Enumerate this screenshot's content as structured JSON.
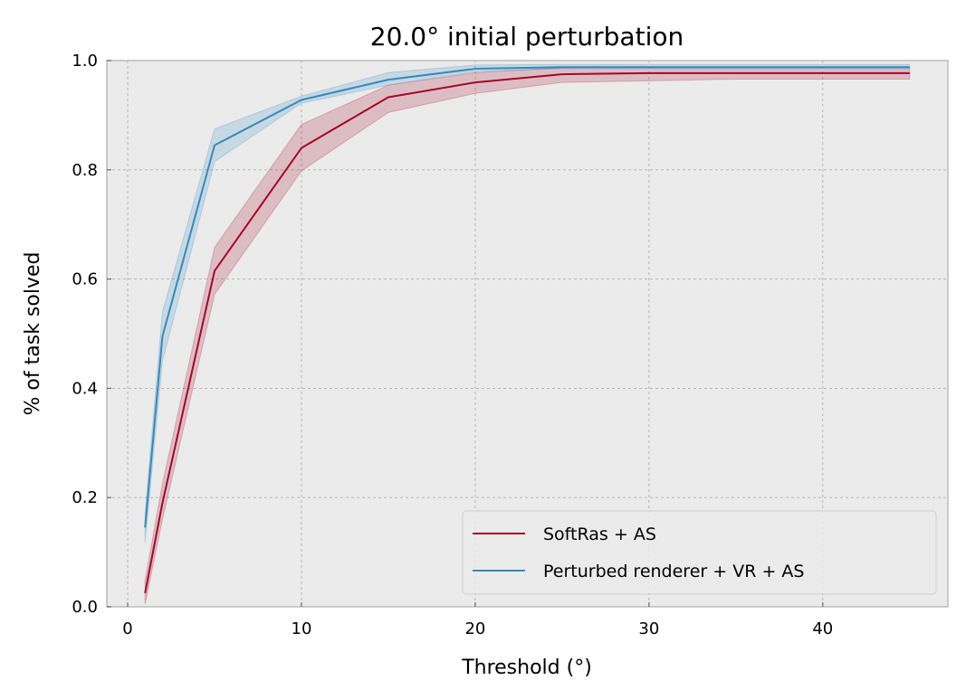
{
  "chart_data": {
    "type": "line",
    "title": "20.0° initial perturbation",
    "xlabel": "Threshold (°)",
    "ylabel": "% of task solved",
    "xlim": [
      -1.2,
      47.2
    ],
    "ylim": [
      0.0,
      1.0
    ],
    "xticks": [
      0,
      10,
      20,
      30,
      40
    ],
    "yticks": [
      0.0,
      0.2,
      0.4,
      0.6,
      0.8,
      1.0
    ],
    "xtick_labels": [
      "0",
      "10",
      "20",
      "30",
      "40"
    ],
    "ytick_labels": [
      "0.0",
      "0.2",
      "0.4",
      "0.6",
      "0.8",
      "1.0"
    ],
    "grid": true,
    "legend_position": "lower-right",
    "x": [
      1,
      2,
      5,
      10,
      15,
      20,
      25,
      30,
      35,
      40,
      45
    ],
    "series": [
      {
        "name": "SoftRas + AS",
        "color": "#a60628",
        "values": [
          0.025,
          0.19,
          0.615,
          0.84,
          0.933,
          0.96,
          0.975,
          0.977,
          0.977,
          0.977,
          0.977
        ],
        "lower": [
          0.005,
          0.16,
          0.572,
          0.798,
          0.905,
          0.94,
          0.96,
          0.963,
          0.966,
          0.966,
          0.966
        ],
        "upper": [
          0.048,
          0.225,
          0.658,
          0.883,
          0.955,
          0.978,
          0.987,
          0.988,
          0.988,
          0.988,
          0.988
        ]
      },
      {
        "name": "Perturbed renderer + VR + AS",
        "color": "#348abd",
        "values": [
          0.145,
          0.495,
          0.845,
          0.928,
          0.965,
          0.985,
          0.988,
          0.988,
          0.988,
          0.988,
          0.988
        ],
        "lower": [
          0.118,
          0.45,
          0.815,
          0.922,
          0.955,
          0.98,
          0.985,
          0.985,
          0.985,
          0.985,
          0.985
        ],
        "upper": [
          0.172,
          0.54,
          0.875,
          0.935,
          0.978,
          0.992,
          0.993,
          0.993,
          0.993,
          0.993,
          0.993
        ]
      }
    ]
  },
  "colors": {
    "plot_background": "#ebebeb",
    "grid": "#b0b0b0",
    "spine": "#bcbcbc"
  }
}
